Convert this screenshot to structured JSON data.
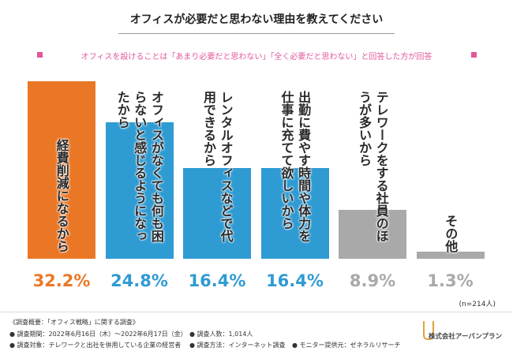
{
  "chart_data": {
    "type": "bar",
    "title": "オフィスが必要だと思わない理由を教えてください",
    "subtitle": "オフィスを設けることは「あまり必要だと思わない」「全く必要だと思わない」と回答した方が回答",
    "categories": [
      "経費削減になるから",
      "オフィスがなくても何も困らないと感じるようになったから",
      "レンタルオフィスなどで代用できるから",
      "出勤に費やす時間や体力を仕事に充てて欲しいから",
      "テレワークをする社員のほうが多いから",
      "その他"
    ],
    "values": [
      32.2,
      24.8,
      16.4,
      16.4,
      8.9,
      1.3
    ],
    "value_labels": [
      "32.2%",
      "24.8%",
      "16.4%",
      "16.4%",
      "8.9%",
      "1.3%"
    ],
    "colors": [
      "#ea7726",
      "#2f9bd3",
      "#2f9bd3",
      "#2f9bd3",
      "#a9a9a9",
      "#a9a9a9"
    ],
    "note": "(n=214人)"
  },
  "footer": {
    "heading": "《調査概要：「オフィス戦略」に関する調査》",
    "items": [
      "● 調査期間：2022年6月16日（木）～2022年6月17日（金）",
      "● 調査人数：1,014人",
      "● 調査対象：テレワークと出社を併用している企業の経営者",
      "● 調査方法：インターネット調査",
      "● モニター提供元：ゼネラルリサーチ"
    ],
    "logo": "株式会社アーバンプラン"
  }
}
